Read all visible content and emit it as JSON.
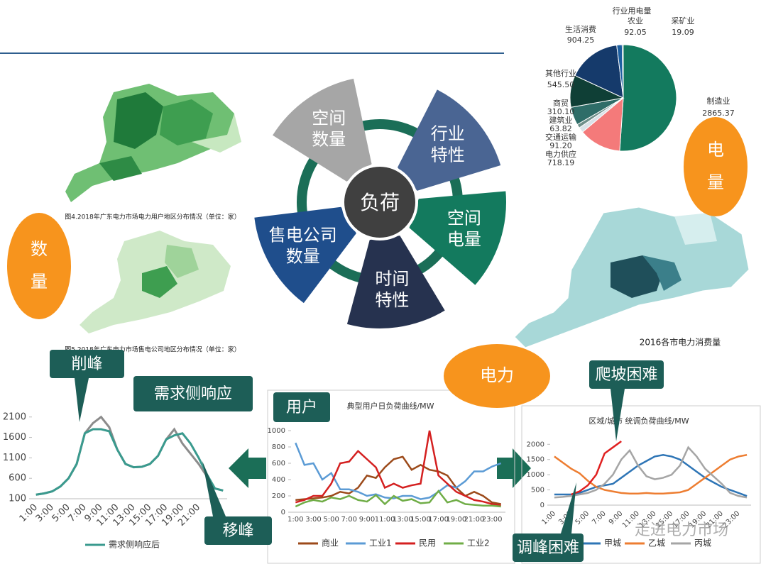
{
  "center": "负荷",
  "petals": [
    {
      "lines": [
        "空间",
        "数量"
      ]
    },
    {
      "lines": [
        "行业",
        "特性"
      ]
    },
    {
      "lines": [
        "空间",
        "电量"
      ]
    },
    {
      "lines": [
        "时间",
        "特性"
      ]
    },
    {
      "lines": [
        "售电公司",
        "数量"
      ]
    }
  ],
  "circles": [
    [
      "数",
      "量"
    ],
    [
      "电",
      "量"
    ],
    [
      "电力"
    ]
  ],
  "callouts": [
    "削峰",
    "需求侧响应",
    "移峰",
    "用户",
    "爬坡困难",
    "调峰困难"
  ],
  "map_captions": [
    "图4.2018年广东电力市场电力用户地区分布情况（单位：家）",
    "图5.2018年广东电力市场售电公司地区分布情况（单位：家）",
    "2016各市电力消费量"
  ],
  "watermark": "走进电力市场",
  "chart_data": [
    {
      "type": "pie",
      "title": "行业用电量",
      "categories": [
        "制造业",
        "电力供应",
        "交通运输",
        "建筑业",
        "商贸",
        "其他行业",
        "生活消费",
        "农业",
        "采矿业"
      ],
      "values": [
        2865.37,
        718.19,
        91.2,
        63.82,
        310.1,
        545.5,
        904.25,
        92.05,
        19.09
      ],
      "value_labels": [
        "2865.37",
        "718.19",
        "91.20",
        "63.82",
        "310.10",
        "545.50",
        "904.25",
        "92.05",
        "19.09"
      ],
      "colors": [
        "#137a5e",
        "#f47a7a",
        "#d9e2e8",
        "#6e8f8a",
        "#2e6d68",
        "#0f3f36",
        "#153a6b",
        "#1d5fa0",
        "#2a6b6b"
      ]
    },
    {
      "type": "line",
      "categories": [
        "1:00",
        null,
        "3:00",
        null,
        "5:00",
        null,
        "7:00",
        null,
        "9:00",
        null,
        "11:00",
        null,
        "13:00",
        null,
        "15:00",
        null,
        "17:00",
        null,
        "19:00",
        null,
        "21:00",
        null,
        null,
        null
      ],
      "ylim": [
        100,
        2200
      ],
      "yticks": [
        100,
        600,
        1100,
        1600,
        2100
      ],
      "series": [
        {
          "color": "#8c8c8c",
          "values": [
            200,
            230,
            280,
            400,
            600,
            950,
            1700,
            1950,
            2100,
            1850,
            1300,
            950,
            870,
            880,
            950,
            1150,
            1550,
            1800,
            1450,
            1200,
            950,
            650,
            350,
            300
          ]
        },
        {
          "name": "需求侧响应后",
          "color": "#3a9a8e",
          "values": [
            200,
            230,
            280,
            400,
            600,
            950,
            1700,
            1800,
            1800,
            1750,
            1300,
            950,
            870,
            880,
            950,
            1150,
            1550,
            1650,
            1700,
            1450,
            1100,
            700,
            350,
            300
          ]
        }
      ]
    },
    {
      "type": "line",
      "title": "典型用户日负荷曲线/MW",
      "categories": [
        "1:00",
        null,
        "3:00",
        null,
        "5:00",
        null,
        "7:00",
        null,
        "9:00",
        null,
        "11:00",
        null,
        "13:00",
        null,
        "15:00",
        null,
        "17:00",
        null,
        "19:00",
        null,
        "21:00",
        null,
        "23:00",
        null
      ],
      "ylim": [
        0,
        1000
      ],
      "yticks": [
        0,
        200,
        400,
        600,
        800,
        1000
      ],
      "series": [
        {
          "name": "商业",
          "color": "#9c4a1a",
          "values": [
            150,
            160,
            170,
            180,
            200,
            250,
            230,
            300,
            450,
            420,
            550,
            650,
            680,
            520,
            580,
            520,
            500,
            450,
            300,
            200,
            250,
            200,
            120,
            100
          ]
        },
        {
          "name": "工业1",
          "color": "#5b9bd5",
          "values": [
            850,
            580,
            600,
            400,
            480,
            280,
            280,
            250,
            200,
            220,
            180,
            170,
            200,
            200,
            160,
            180,
            250,
            330,
            300,
            380,
            500,
            500,
            560,
            600
          ]
        },
        {
          "name": "民用",
          "color": "#d42020",
          "values": [
            120,
            150,
            200,
            200,
            350,
            600,
            620,
            750,
            650,
            550,
            300,
            350,
            300,
            330,
            350,
            1000,
            450,
            350,
            250,
            200,
            150,
            130,
            100,
            80
          ]
        },
        {
          "name": "工业2",
          "color": "#70ad47",
          "values": [
            70,
            120,
            150,
            130,
            180,
            160,
            200,
            150,
            130,
            210,
            100,
            200,
            140,
            160,
            110,
            120,
            260,
            120,
            150,
            100,
            90,
            80,
            80,
            70
          ]
        }
      ]
    },
    {
      "type": "line",
      "title": "区域/城市  统调负荷曲线/MW",
      "categories": [
        "1:00",
        null,
        "3:00",
        null,
        "5:00",
        null,
        "7:00",
        null,
        "9:00",
        null,
        "11:00",
        null,
        "13:00",
        null,
        "15:00",
        null,
        "17:00",
        null,
        "19:00",
        null,
        "21:00",
        null,
        "23:00",
        null
      ],
      "ylim": [
        0,
        2100
      ],
      "yticks": [
        0,
        500,
        1000,
        1500,
        2000
      ],
      "series": [
        {
          "name": "甲城",
          "color": "#2e75b6",
          "values": [
            350,
            350,
            350,
            400,
            500,
            600,
            650,
            700,
            900,
            1100,
            1300,
            1450,
            1600,
            1650,
            1600,
            1500,
            1300,
            1100,
            900,
            750,
            600,
            500,
            400,
            300
          ]
        },
        {
          "name": "乙城",
          "color": "#ed7d31",
          "values": [
            1600,
            1400,
            1200,
            1050,
            800,
            600,
            500,
            450,
            400,
            380,
            380,
            400,
            380,
            380,
            400,
            420,
            500,
            700,
            900,
            1100,
            1300,
            1500,
            1600,
            1650
          ]
        },
        {
          "name": "丙城",
          "color": "#a5a5a5",
          "values": [
            250,
            270,
            300,
            350,
            400,
            500,
            700,
            1000,
            1500,
            1800,
            1300,
            950,
            850,
            900,
            1000,
            1300,
            1900,
            1600,
            1200,
            950,
            700,
            400,
            300,
            250
          ]
        },
        {
          "color": "#e02020",
          "values": [
            null,
            null,
            350,
            450,
            650,
            1000,
            1700,
            1900,
            2100,
            null,
            null,
            null,
            null,
            null,
            null,
            null,
            null,
            null,
            null,
            null,
            null,
            null,
            null,
            null
          ]
        }
      ]
    }
  ]
}
